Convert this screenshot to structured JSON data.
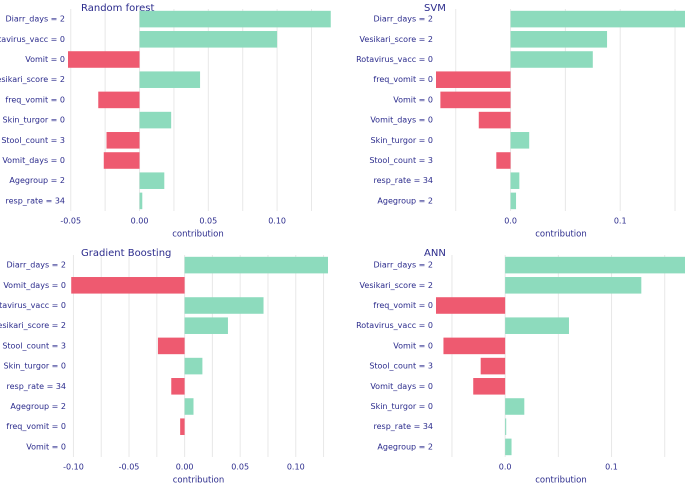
{
  "colors": {
    "positive": "#8ddbbd",
    "negative": "#ee5a70",
    "text": "#2b2b8c",
    "grid": "#e8e8e8"
  },
  "chart_data": [
    {
      "type": "bar",
      "orientation": "horizontal",
      "title": "Random forest",
      "xlabel": "contribution",
      "xlim": [
        -0.052,
        0.137
      ],
      "xticks": [
        -0.05,
        0.0,
        0.05,
        0.1
      ],
      "xtick_labels": [
        "-0.05",
        "0.00",
        "0.05",
        "0.10"
      ],
      "categories": [
        "Diarr_days = 2",
        "Rotavirus_vacc = 0",
        "Vomit = 0",
        "Vesikari_score = 2",
        "freq_vomit = 0",
        "Skin_turgor = 0",
        "Stool_count = 3",
        "Vomit_days = 0",
        "Agegroup = 2",
        "resp_rate = 34"
      ],
      "values": [
        0.139,
        0.1,
        -0.052,
        0.044,
        -0.03,
        0.023,
        -0.024,
        -0.026,
        0.018,
        0.002
      ]
    },
    {
      "type": "bar",
      "orientation": "horizontal",
      "title": "SVM",
      "xlabel": "contribution",
      "xlim": [
        -0.068,
        0.16
      ],
      "xticks": [
        0.0,
        0.1
      ],
      "xtick_labels": [
        "0.0",
        "0.1"
      ],
      "categories": [
        "Diarr_days = 2",
        "Vesikari_score = 2",
        "Rotavirus_vacc = 0",
        "freq_vomit = 0",
        "Vomit = 0",
        "Vomit_days = 0",
        "Skin_turgor = 0",
        "Stool_count = 3",
        "resp_rate = 34",
        "Agegroup = 2"
      ],
      "values": [
        0.163,
        0.088,
        0.075,
        -0.068,
        -0.064,
        -0.029,
        0.017,
        -0.013,
        0.008,
        0.005
      ]
    },
    {
      "type": "bar",
      "orientation": "horizontal",
      "title": "Gradient Boosting",
      "xlabel": "contribution",
      "xlim": [
        -0.104,
        0.129
      ],
      "xticks": [
        -0.1,
        -0.05,
        0.0,
        0.05,
        0.1
      ],
      "xtick_labels": [
        "-0.10",
        "-0.05",
        "0.00",
        "0.05",
        "0.10"
      ],
      "categories": [
        "Diarr_days = 2",
        "Vomit_days = 0",
        "Rotavirus_vacc = 0",
        "Vesikari_score = 2",
        "Stool_count = 3",
        "Skin_turgor = 0",
        "resp_rate = 34",
        "Agegroup = 2",
        "freq_vomit = 0",
        "Vomit = 0"
      ],
      "values": [
        0.129,
        -0.102,
        0.071,
        0.039,
        -0.024,
        0.016,
        -0.012,
        0.008,
        -0.004,
        0.0
      ]
    },
    {
      "type": "bar",
      "orientation": "horizontal",
      "title": "ANN",
      "xlabel": "contribution",
      "xlim": [
        -0.065,
        0.17
      ],
      "xticks": [
        0.0,
        0.1
      ],
      "xtick_labels": [
        "0.0",
        "0.1"
      ],
      "categories": [
        "Diarr_days = 2",
        "Vesikari_score = 2",
        "freq_vomit = 0",
        "Rotavirus_vacc = 0",
        "Vomit = 0",
        "Stool_count = 3",
        "Vomit_days = 0",
        "Skin_turgor = 0",
        "resp_rate = 34",
        "Agegroup = 2"
      ],
      "values": [
        0.17,
        0.128,
        -0.065,
        0.06,
        -0.058,
        -0.023,
        -0.03,
        0.018,
        0.001,
        0.006
      ]
    }
  ]
}
